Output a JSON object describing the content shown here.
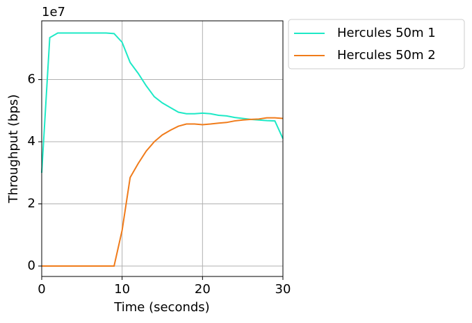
{
  "chart_data": {
    "type": "line",
    "xlabel": "Time (seconds)",
    "ylabel": "Throughput (bps)",
    "y_offset_label": "1e7",
    "x": [
      0,
      1,
      2,
      3,
      4,
      5,
      6,
      7,
      8,
      9,
      10,
      11,
      12,
      13,
      14,
      15,
      16,
      17,
      18,
      19,
      20,
      21,
      22,
      23,
      24,
      25,
      26,
      27,
      28,
      29,
      30
    ],
    "series": [
      {
        "name": "Hercules 50m 1",
        "color": "#1de9c6",
        "values": [
          3.0,
          7.35,
          7.5,
          7.5,
          7.5,
          7.5,
          7.5,
          7.5,
          7.5,
          7.48,
          7.2,
          6.55,
          6.2,
          5.8,
          5.45,
          5.25,
          5.1,
          4.95,
          4.9,
          4.9,
          4.92,
          4.9,
          4.85,
          4.83,
          4.78,
          4.75,
          4.72,
          4.7,
          4.68,
          4.67,
          4.1
        ]
      },
      {
        "name": "Hercules 50m 2",
        "color": "#f07b1a",
        "values": [
          0,
          0,
          0,
          0,
          0,
          0,
          0,
          0,
          0,
          0,
          1.15,
          2.85,
          3.3,
          3.7,
          4.0,
          4.22,
          4.37,
          4.5,
          4.57,
          4.57,
          4.55,
          4.57,
          4.6,
          4.62,
          4.67,
          4.7,
          4.72,
          4.73,
          4.77,
          4.77,
          4.75
        ]
      }
    ],
    "xlim": [
      0,
      30
    ],
    "xticks": [
      0,
      10,
      20,
      30
    ],
    "ylim": [
      -0.335,
      7.89
    ],
    "yticks": [
      0,
      2,
      4,
      6
    ],
    "grid": true,
    "legend": "outside-upper-right"
  }
}
